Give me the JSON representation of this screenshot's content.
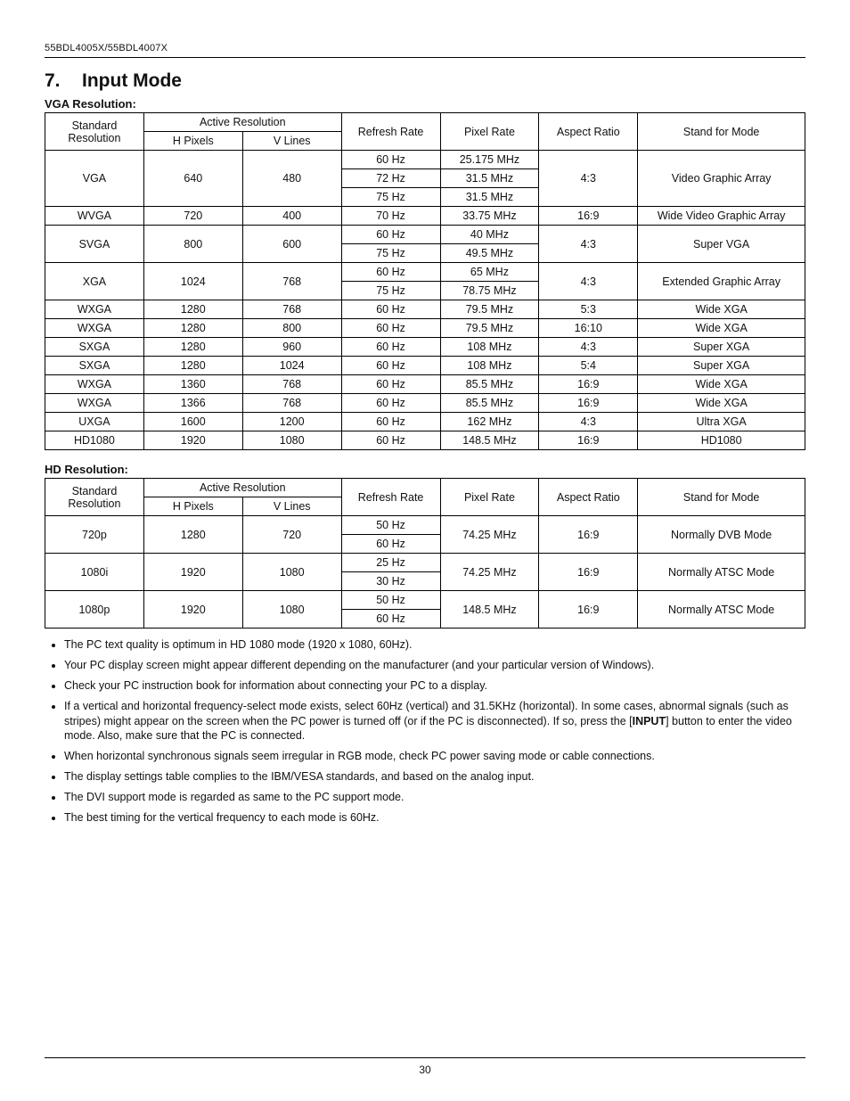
{
  "header": {
    "model": "55BDL4005X/55BDL4007X"
  },
  "section": {
    "number": "7.",
    "title": "Input Mode"
  },
  "vga": {
    "caption": "VGA Resolution:",
    "head": {
      "std_res_l1": "Standard",
      "std_res_l2": "Resolution",
      "active_res": "Active Resolution",
      "h_pixels": "H Pixels",
      "v_lines": "V Lines",
      "refresh": "Refresh Rate",
      "pixel": "Pixel Rate",
      "aspect": "Aspect Ratio",
      "stand": "Stand for Mode"
    },
    "rows": [
      {
        "std": "VGA",
        "hp": "640",
        "vl": "480",
        "rr": "60 Hz",
        "pr": "25.175 MHz",
        "ar": "4:3",
        "sm": "Video Graphic Array",
        "rs": 3
      },
      {
        "rr": "72 Hz",
        "pr": "31.5 MHz"
      },
      {
        "rr": "75 Hz",
        "pr": "31.5 MHz"
      },
      {
        "std": "WVGA",
        "hp": "720",
        "vl": "400",
        "rr": "70 Hz",
        "pr": "33.75 MHz",
        "ar": "16:9",
        "sm": "Wide Video Graphic Array",
        "rs": 1
      },
      {
        "std": "SVGA",
        "hp": "800",
        "vl": "600",
        "rr": "60 Hz",
        "pr": "40 MHz",
        "ar": "4:3",
        "sm": "Super VGA",
        "rs": 2
      },
      {
        "rr": "75 Hz",
        "pr": "49.5 MHz"
      },
      {
        "std": "XGA",
        "hp": "1024",
        "vl": "768",
        "rr": "60 Hz",
        "pr": "65 MHz",
        "ar": "4:3",
        "sm": "Extended Graphic Array",
        "rs": 2
      },
      {
        "rr": "75 Hz",
        "pr": "78.75 MHz"
      },
      {
        "std": "WXGA",
        "hp": "1280",
        "vl": "768",
        "rr": "60 Hz",
        "pr": "79.5 MHz",
        "ar": "5:3",
        "sm": "Wide XGA",
        "rs": 1
      },
      {
        "std": "WXGA",
        "hp": "1280",
        "vl": "800",
        "rr": "60 Hz",
        "pr": "79.5 MHz",
        "ar": "16:10",
        "sm": "Wide XGA",
        "rs": 1
      },
      {
        "std": "SXGA",
        "hp": "1280",
        "vl": "960",
        "rr": "60 Hz",
        "pr": "108 MHz",
        "ar": "4:3",
        "sm": "Super XGA",
        "rs": 1
      },
      {
        "std": "SXGA",
        "hp": "1280",
        "vl": "1024",
        "rr": "60 Hz",
        "pr": "108 MHz",
        "ar": "5:4",
        "sm": "Super XGA",
        "rs": 1
      },
      {
        "std": "WXGA",
        "hp": "1360",
        "vl": "768",
        "rr": "60 Hz",
        "pr": "85.5 MHz",
        "ar": "16:9",
        "sm": "Wide XGA",
        "rs": 1
      },
      {
        "std": "WXGA",
        "hp": "1366",
        "vl": "768",
        "rr": "60 Hz",
        "pr": "85.5 MHz",
        "ar": "16:9",
        "sm": "Wide XGA",
        "rs": 1
      },
      {
        "std": "UXGA",
        "hp": "1600",
        "vl": "1200",
        "rr": "60 Hz",
        "pr": "162 MHz",
        "ar": "4:3",
        "sm": "Ultra XGA",
        "rs": 1
      },
      {
        "std": "HD1080",
        "hp": "1920",
        "vl": "1080",
        "rr": "60 Hz",
        "pr": "148.5 MHz",
        "ar": "16:9",
        "sm": "HD1080",
        "rs": 1
      }
    ]
  },
  "hd": {
    "caption": "HD Resolution:",
    "rows": [
      {
        "std": "720p",
        "hp": "1280",
        "vl": "720",
        "rr": "50 Hz",
        "pr": "74.25 MHz",
        "ar": "16:9",
        "sm": "Normally DVB Mode",
        "rs": 2
      },
      {
        "rr": "60 Hz"
      },
      {
        "std": "1080i",
        "hp": "1920",
        "vl": "1080",
        "rr": "25 Hz",
        "pr": "74.25 MHz",
        "ar": "16:9",
        "sm": "Normally ATSC Mode",
        "rs": 2
      },
      {
        "rr": "30 Hz"
      },
      {
        "std": "1080p",
        "hp": "1920",
        "vl": "1080",
        "rr": "50 Hz",
        "pr": "148.5 MHz",
        "ar": "16:9",
        "sm": "Normally ATSC Mode",
        "rs": 2
      },
      {
        "rr": "60 Hz"
      }
    ]
  },
  "notes": [
    {
      "text": "The PC text quality is optimum in HD 1080 mode (1920 x 1080, 60Hz)."
    },
    {
      "text": "Your PC display screen might appear different depending on the manufacturer (and your particular version of Windows)."
    },
    {
      "text": "Check your PC instruction book for information about connecting your PC to a display."
    },
    {
      "text": "If a vertical and horizontal frequency-select mode exists, select 60Hz (vertical) and 31.5KHz (horizontal). In some cases, abnormal signals (such as stripes) might appear on the screen when the PC power is turned off (or if the PC is disconnected). If so, press the [",
      "bold": "INPUT",
      "text2": "] button to enter the video mode. Also, make sure that the PC is connected."
    },
    {
      "text": "When horizontal synchronous signals seem irregular in RGB mode, check PC power saving mode or cable connections."
    },
    {
      "text": "The display settings table complies to the IBM/VESA standards, and based on the analog input."
    },
    {
      "text": "The DVI support mode is regarded as same to the PC support mode."
    },
    {
      "text": "The best timing for the vertical frequency to each mode is 60Hz."
    }
  ],
  "page_number": "30"
}
